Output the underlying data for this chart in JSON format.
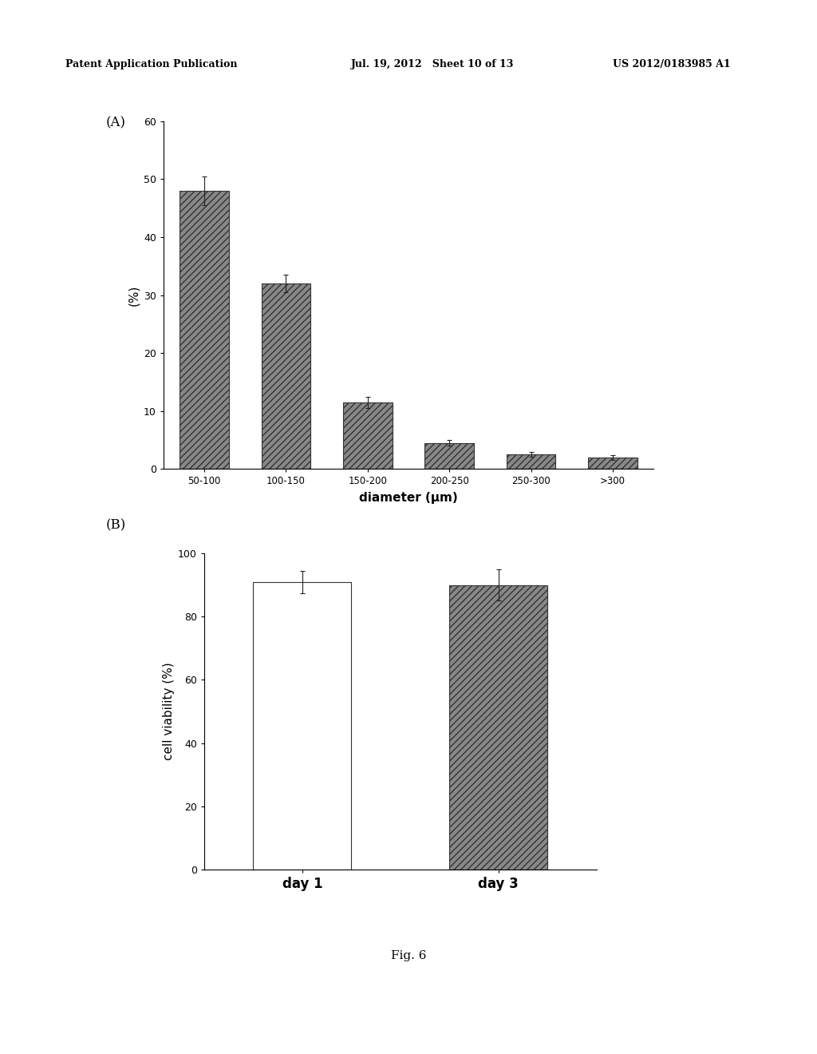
{
  "panel_A": {
    "categories": [
      "50-100",
      "100-150",
      "150-200",
      "200-250",
      "250-300",
      ">300"
    ],
    "values": [
      48,
      32,
      11.5,
      4.5,
      2.5,
      2.0
    ],
    "errors": [
      2.5,
      1.5,
      1.0,
      0.5,
      0.4,
      0.4
    ],
    "ylabel": "(%)",
    "xlabel": "diameter (μm)",
    "ylim": [
      0,
      60
    ],
    "yticks": [
      0,
      10,
      20,
      30,
      40,
      50,
      60
    ],
    "hatch": "////",
    "bar_color": "#888888",
    "bar_edge_color": "#333333",
    "label": "(A)"
  },
  "panel_B": {
    "categories": [
      "day 1",
      "day 3"
    ],
    "values": [
      91,
      90
    ],
    "errors": [
      3.5,
      5.0
    ],
    "ylabel": "cell viability (%)",
    "ylim": [
      0,
      100
    ],
    "yticks": [
      0,
      20,
      40,
      60,
      80,
      100
    ],
    "hatches": [
      "",
      "////"
    ],
    "bar_colors": [
      "#ffffff",
      "#888888"
    ],
    "bar_edge_color": "#333333",
    "label": "(B)"
  },
  "fig_label": "Fig. 6",
  "header_left": "Patent Application Publication",
  "header_mid": "Jul. 19, 2012   Sheet 10 of 13",
  "header_right": "US 2012/0183985 A1",
  "background_color": "#ffffff",
  "text_color": "#000000"
}
